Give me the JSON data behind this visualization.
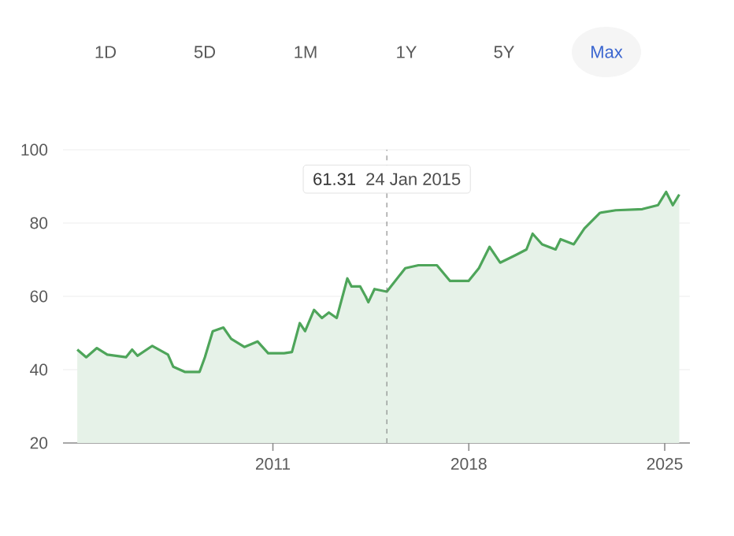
{
  "chart_data": {
    "type": "area",
    "color": "#4ea55a",
    "x": [
      2004.01,
      2004.33,
      2004.71,
      2005.08,
      2005.75,
      2005.97,
      2006.16,
      2006.69,
      2007.25,
      2007.44,
      2007.85,
      2008.38,
      2008.57,
      2008.85,
      2009.23,
      2009.51,
      2009.98,
      2010.45,
      2010.83,
      2011.4,
      2011.68,
      2011.96,
      2012.15,
      2012.47,
      2012.75,
      2013.0,
      2013.28,
      2013.66,
      2013.81,
      2014.12,
      2014.32,
      2014.41,
      2014.63,
      2015.07,
      2015.73,
      2016.2,
      2016.86,
      2017.33,
      2017.99,
      2018.36,
      2018.74,
      2019.12,
      2019.68,
      2020.06,
      2020.28,
      2020.62,
      2021.1,
      2021.28,
      2021.75,
      2022.13,
      2022.69,
      2023.25,
      2024.2,
      2024.76,
      2025.05,
      2025.29,
      2025.52
    ],
    "values": [
      45.5,
      43.4,
      45.9,
      44.1,
      43.4,
      45.5,
      43.8,
      46.5,
      44.1,
      40.8,
      39.4,
      39.4,
      43.4,
      50.5,
      51.5,
      48.4,
      46.2,
      47.7,
      44.5,
      44.5,
      44.8,
      52.7,
      50.5,
      56.3,
      54.1,
      55.6,
      54.1,
      64.9,
      62.7,
      62.7,
      59.9,
      58.4,
      62.0,
      61.3,
      67.7,
      68.5,
      68.5,
      64.2,
      64.2,
      67.7,
      73.5,
      69.2,
      71.3,
      72.8,
      77.1,
      74.2,
      72.8,
      75.6,
      74.2,
      78.5,
      82.8,
      83.5,
      83.8,
      84.9,
      88.5,
      84.9,
      87.8
    ],
    "xlim": [
      2003.5,
      2025.9
    ],
    "ylim": [
      20,
      100
    ],
    "xticks": [
      2011,
      2018,
      2025
    ],
    "yticks": [
      20,
      40,
      60,
      80,
      100
    ],
    "grid": "y",
    "ref_lines": [
      {
        "axis": "x",
        "value": 2015.07,
        "label": "24 Jan 2015",
        "line_style": "dashed",
        "color": "#757575"
      }
    ],
    "annotations": [
      "1D",
      "5D",
      "1M",
      "1Y",
      "5Y",
      "Max",
      "61.31"
    ]
  }
}
